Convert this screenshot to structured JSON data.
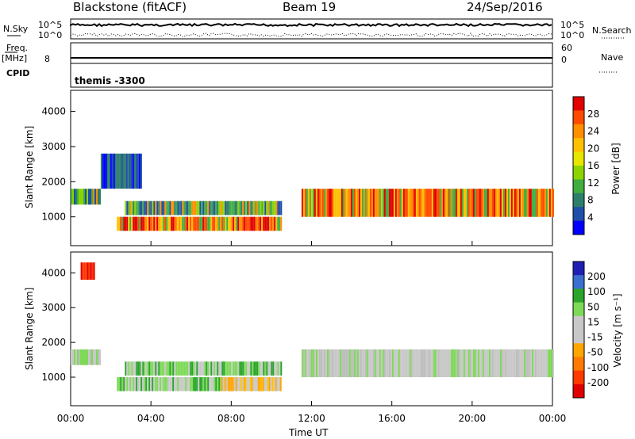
{
  "header": {
    "station": "Blackstone (fitACF)",
    "beam": "Beam 19",
    "date": "24/Sep/2016"
  },
  "top_panels": {
    "nsky_label": "N.Sky",
    "nsearch_label": "N.Search",
    "nsky_ticks": [
      "10^5",
      "10^0"
    ],
    "nsky_right_ticks": [
      "10^5",
      "10^0"
    ],
    "freq_label": "Freq.",
    "freq_unit": "[MHz]",
    "freq_tick": "8",
    "nave_label": "Nave",
    "nave_ticks": [
      "60",
      "0"
    ],
    "cpid_label": "CPID",
    "cpid_value": "themis -3300"
  },
  "chart_data": [
    {
      "type": "heatmap",
      "name": "power-panel",
      "ylabel": "Slant Range [km]",
      "xlabel": "",
      "x_ticks": [
        "00:00",
        "04:00",
        "08:00",
        "12:00",
        "16:00",
        "20:00",
        "00:00"
      ],
      "y_ticks": [
        "1000",
        "2000",
        "3000",
        "4000"
      ],
      "xlim": [
        0,
        24
      ],
      "ylim": [
        180,
        4600
      ],
      "colorbar": {
        "label": "Power [dB]",
        "ticks": [
          "28",
          "24",
          "20",
          "16",
          "12",
          "8",
          "4"
        ],
        "colors": [
          "#e00000",
          "#ff4a00",
          "#ff8f00",
          "#ffc000",
          "#e6e600",
          "#8cd400",
          "#3fae3f",
          "#2c7f6a",
          "#1f4fa8",
          "#0000ff"
        ]
      },
      "bands": [
        {
          "t0": 0.0,
          "t1": 1.5,
          "r0": 1350,
          "r1": 1800,
          "level": "mid"
        },
        {
          "t0": 1.5,
          "t1": 3.5,
          "r0": 1800,
          "r1": 2800,
          "level": "weak"
        },
        {
          "t0": 2.3,
          "t1": 10.5,
          "r0": 600,
          "r1": 1000,
          "level": "strong"
        },
        {
          "t0": 2.7,
          "t1": 10.5,
          "r0": 1050,
          "r1": 1450,
          "level": "mid"
        },
        {
          "t0": 11.5,
          "t1": 24.0,
          "r0": 1000,
          "r1": 1800,
          "level": "strong"
        }
      ]
    },
    {
      "type": "heatmap",
      "name": "velocity-panel",
      "ylabel": "Slant Range [km]",
      "xlabel": "Time UT",
      "x_ticks": [
        "00:00",
        "04:00",
        "08:00",
        "12:00",
        "16:00",
        "20:00",
        "00:00"
      ],
      "y_ticks": [
        "1000",
        "2000",
        "3000",
        "4000"
      ],
      "xlim": [
        0,
        24
      ],
      "ylim": [
        180,
        4600
      ],
      "colorbar": {
        "label": "Velocity [m s⁻¹]",
        "ticks": [
          "200",
          "100",
          "50",
          "15",
          "-15",
          "-50",
          "-100",
          "-200"
        ],
        "colors": [
          "#1f1fb4",
          "#3a6fd0",
          "#2aa52a",
          "#7ed957",
          "#c8c8c8",
          "#c8c8c8",
          "#ffa500",
          "#ff7a00",
          "#ff3a00",
          "#e00000"
        ]
      },
      "bands": [
        {
          "t0": 0.0,
          "t1": 1.5,
          "r0": 1350,
          "r1": 1800,
          "level": "grey"
        },
        {
          "t0": 0.5,
          "t1": 1.2,
          "r0": 3800,
          "r1": 4300,
          "level": "red"
        },
        {
          "t0": 2.3,
          "t1": 7.5,
          "r0": 600,
          "r1": 1000,
          "level": "green"
        },
        {
          "t0": 7.5,
          "t1": 10.5,
          "r0": 600,
          "r1": 1000,
          "level": "orange"
        },
        {
          "t0": 2.7,
          "t1": 10.5,
          "r0": 1050,
          "r1": 1450,
          "level": "green"
        },
        {
          "t0": 11.5,
          "t1": 24.0,
          "r0": 1000,
          "r1": 1800,
          "level": "grey"
        }
      ]
    }
  ]
}
